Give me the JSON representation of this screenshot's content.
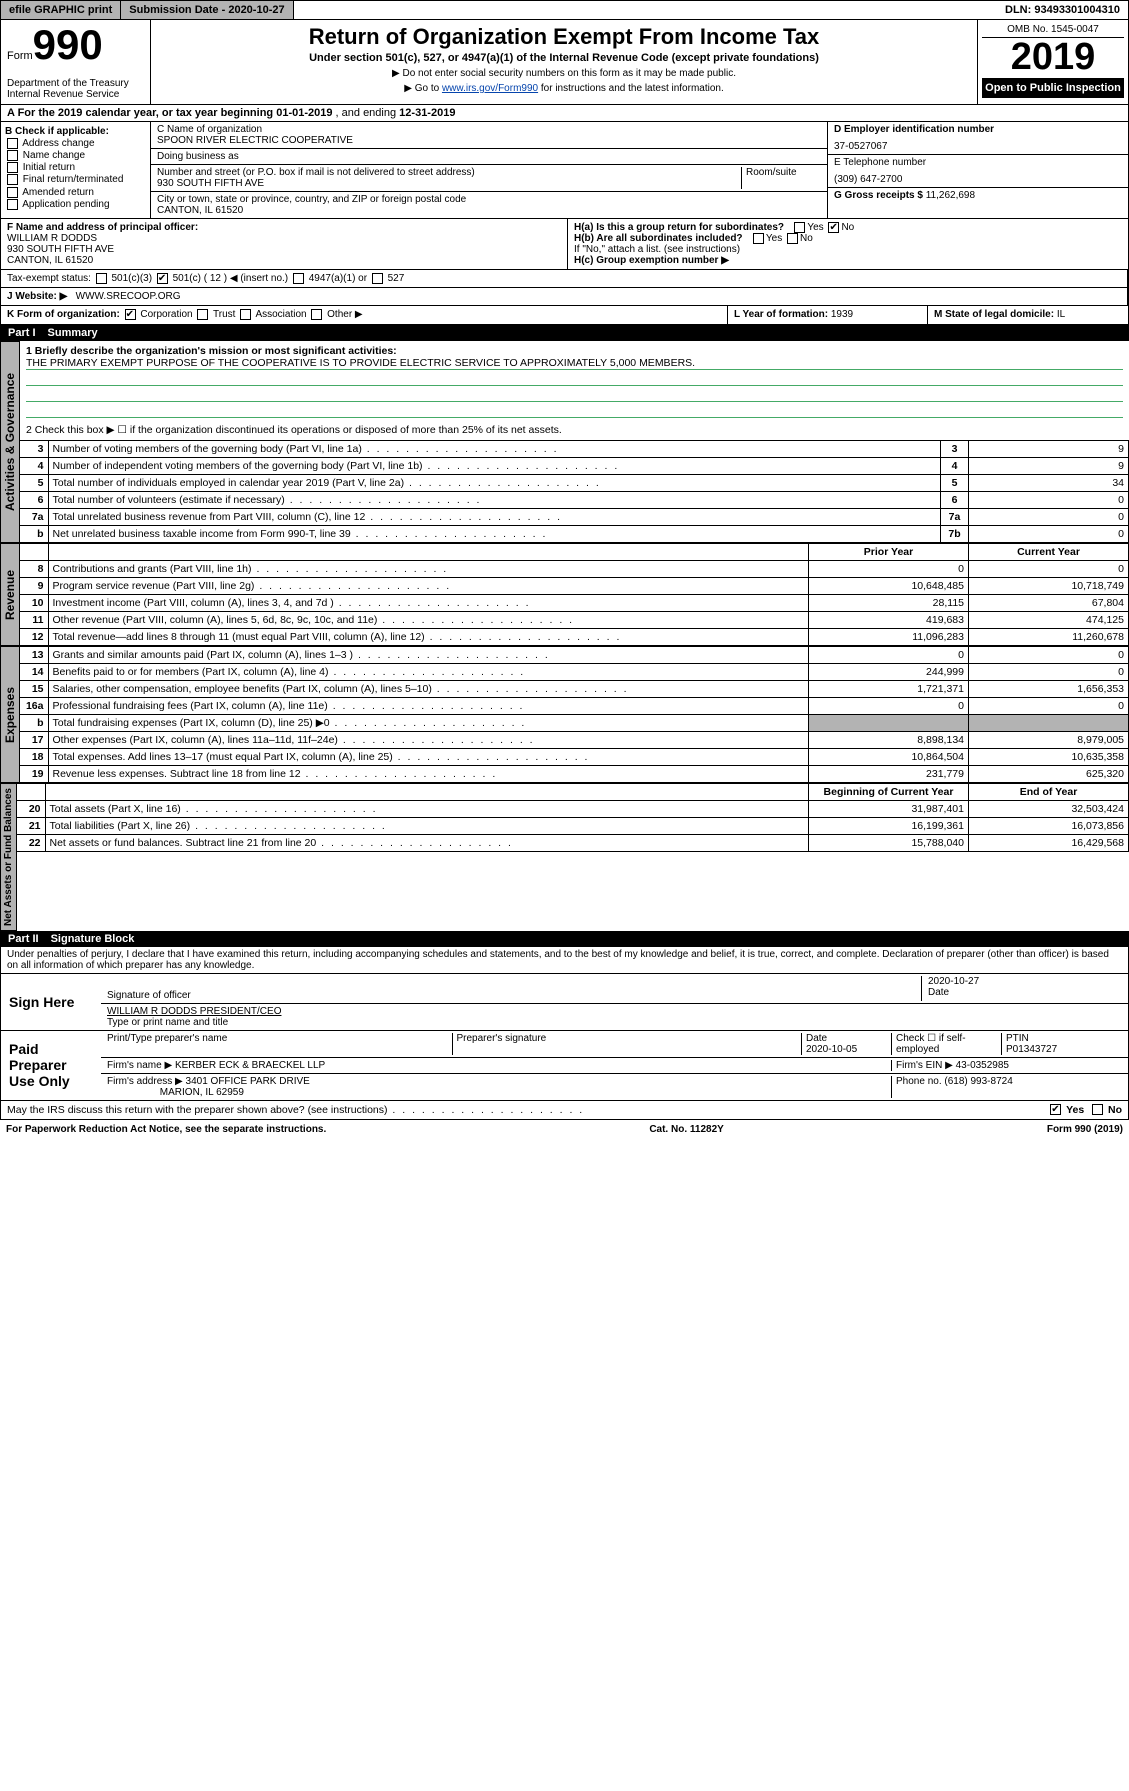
{
  "topbar": {
    "efile": "efile GRAPHIC print",
    "submission_label": "Submission Date - ",
    "submission_date": "2020-10-27",
    "dln_label": "DLN: ",
    "dln": "93493301004310"
  },
  "header": {
    "form_word": "Form",
    "form_num": "990",
    "dept": "Department of the Treasury\nInternal Revenue Service",
    "title": "Return of Organization Exempt From Income Tax",
    "subtitle": "Under section 501(c), 527, or 4947(a)(1) of the Internal Revenue Code (except private foundations)",
    "note1": "▶ Do not enter social security numbers on this form as it may be made public.",
    "note2_pre": "▶ Go to ",
    "note2_link": "www.irs.gov/Form990",
    "note2_post": " for instructions and the latest information.",
    "omb": "OMB No. 1545-0047",
    "year": "2019",
    "open": "Open to Public Inspection"
  },
  "lineA": {
    "text": "A For the 2019 calendar year, or tax year beginning ",
    "begin": "01-01-2019",
    "mid": "   , and ending ",
    "end": "12-31-2019"
  },
  "colB": {
    "hdr": "B Check if applicable:",
    "opts": [
      "Address change",
      "Name change",
      "Initial return",
      "Final return/terminated",
      "Amended return",
      "Application pending"
    ]
  },
  "colC": {
    "name_lbl": "C Name of organization",
    "name": "SPOON RIVER ELECTRIC COOPERATIVE",
    "dba_lbl": "Doing business as",
    "dba": "",
    "addr_lbl": "Number and street (or P.O. box if mail is not delivered to street address)",
    "room_lbl": "Room/suite",
    "addr": "930 SOUTH FIFTH AVE",
    "city_lbl": "City or town, state or province, country, and ZIP or foreign postal code",
    "city": "CANTON, IL  61520"
  },
  "colD": {
    "ein_lbl": "D Employer identification number",
    "ein": "37-0527067",
    "phone_lbl": "E Telephone number",
    "phone": "(309) 647-2700",
    "gross_lbl": "G Gross receipts $ ",
    "gross": "11,262,698"
  },
  "rowF": {
    "lbl": "F  Name and address of principal officer:",
    "name": "WILLIAM R DODDS",
    "addr1": "930 SOUTH FIFTH AVE",
    "addr2": "CANTON, IL  61520"
  },
  "rowH": {
    "a": "H(a)  Is this a group return for subordinates?",
    "b": "H(b)  Are all subordinates included?",
    "b_note": "If \"No,\" attach a list. (see instructions)",
    "c": "H(c)  Group exemption number ▶"
  },
  "taxExempt": {
    "lbl": "Tax-exempt status:",
    "c12": "501(c) ( 12 ) ◀ (insert no.)",
    "opts": [
      "501(c)(3)",
      "4947(a)(1) or",
      "527"
    ]
  },
  "rowJ": {
    "lbl": "J Website: ▶",
    "val": "WWW.SRECOOP.ORG"
  },
  "rowK": {
    "lbl": "K Form of organization:",
    "opts": [
      "Corporation",
      "Trust",
      "Association",
      "Other ▶"
    ],
    "L_lbl": "L Year of formation: ",
    "L_val": "1939",
    "M_lbl": "M State of legal domicile: ",
    "M_val": "IL"
  },
  "part1": {
    "num": "Part I",
    "title": "Summary"
  },
  "summary": {
    "q1_lbl": "1  Briefly describe the organization's mission or most significant activities:",
    "q1_val": "THE PRIMARY EXEMPT PURPOSE OF THE COOPERATIVE IS TO PROVIDE ELECTRIC SERVICE TO APPROXIMATELY 5,000 MEMBERS.",
    "q2": "2   Check this box ▶ ☐  if the organization discontinued its operations or disposed of more than 25% of its net assets.",
    "rows_governance": [
      {
        "n": "3",
        "d": "Number of voting members of the governing body (Part VI, line 1a)",
        "b": "3",
        "v": "9"
      },
      {
        "n": "4",
        "d": "Number of independent voting members of the governing body (Part VI, line 1b)",
        "b": "4",
        "v": "9"
      },
      {
        "n": "5",
        "d": "Total number of individuals employed in calendar year 2019 (Part V, line 2a)",
        "b": "5",
        "v": "34"
      },
      {
        "n": "6",
        "d": "Total number of volunteers (estimate if necessary)",
        "b": "6",
        "v": "0"
      },
      {
        "n": "7a",
        "d": "Total unrelated business revenue from Part VIII, column (C), line 12",
        "b": "7a",
        "v": "0"
      },
      {
        "n": "b",
        "d": "Net unrelated business taxable income from Form 990-T, line 39",
        "b": "7b",
        "v": "0"
      }
    ],
    "col_hdr_prior": "Prior Year",
    "col_hdr_current": "Current Year",
    "rows_revenue": [
      {
        "n": "8",
        "d": "Contributions and grants (Part VIII, line 1h)",
        "p": "0",
        "c": "0"
      },
      {
        "n": "9",
        "d": "Program service revenue (Part VIII, line 2g)",
        "p": "10,648,485",
        "c": "10,718,749"
      },
      {
        "n": "10",
        "d": "Investment income (Part VIII, column (A), lines 3, 4, and 7d )",
        "p": "28,115",
        "c": "67,804"
      },
      {
        "n": "11",
        "d": "Other revenue (Part VIII, column (A), lines 5, 6d, 8c, 9c, 10c, and 11e)",
        "p": "419,683",
        "c": "474,125"
      },
      {
        "n": "12",
        "d": "Total revenue—add lines 8 through 11 (must equal Part VIII, column (A), line 12)",
        "p": "11,096,283",
        "c": "11,260,678"
      }
    ],
    "rows_expenses": [
      {
        "n": "13",
        "d": "Grants and similar amounts paid (Part IX, column (A), lines 1–3 )",
        "p": "0",
        "c": "0"
      },
      {
        "n": "14",
        "d": "Benefits paid to or for members (Part IX, column (A), line 4)",
        "p": "244,999",
        "c": "0"
      },
      {
        "n": "15",
        "d": "Salaries, other compensation, employee benefits (Part IX, column (A), lines 5–10)",
        "p": "1,721,371",
        "c": "1,656,353"
      },
      {
        "n": "16a",
        "d": "Professional fundraising fees (Part IX, column (A), line 11e)",
        "p": "0",
        "c": "0"
      },
      {
        "n": "b",
        "d": "Total fundraising expenses (Part IX, column (D), line 25) ▶0",
        "p": "",
        "c": "",
        "shade": true
      },
      {
        "n": "17",
        "d": "Other expenses (Part IX, column (A), lines 11a–11d, 11f–24e)",
        "p": "8,898,134",
        "c": "8,979,005"
      },
      {
        "n": "18",
        "d": "Total expenses. Add lines 13–17 (must equal Part IX, column (A), line 25)",
        "p": "10,864,504",
        "c": "10,635,358"
      },
      {
        "n": "19",
        "d": "Revenue less expenses. Subtract line 18 from line 12",
        "p": "231,779",
        "c": "625,320"
      }
    ],
    "col_hdr_begin": "Beginning of Current Year",
    "col_hdr_end": "End of Year",
    "rows_netassets": [
      {
        "n": "20",
        "d": "Total assets (Part X, line 16)",
        "p": "31,987,401",
        "c": "32,503,424"
      },
      {
        "n": "21",
        "d": "Total liabilities (Part X, line 26)",
        "p": "16,199,361",
        "c": "16,073,856"
      },
      {
        "n": "22",
        "d": "Net assets or fund balances. Subtract line 21 from line 20",
        "p": "15,788,040",
        "c": "16,429,568"
      }
    ]
  },
  "sidelabels": {
    "gov": "Activities & Governance",
    "rev": "Revenue",
    "exp": "Expenses",
    "net": "Net Assets or Fund Balances"
  },
  "part2": {
    "num": "Part II",
    "title": "Signature Block"
  },
  "perjury": "Under penalties of perjury, I declare that I have examined this return, including accompanying schedules and statements, and to the best of my knowledge and belief, it is true, correct, and complete. Declaration of preparer (other than officer) is based on all information of which preparer has any knowledge.",
  "sign": {
    "here": "Sign Here",
    "sig_officer": "Signature of officer",
    "date": "2020-10-27",
    "date_lbl": "Date",
    "name": "WILLIAM R DODDS  PRESIDENT/CEO",
    "name_lbl": "Type or print name and title"
  },
  "paid": {
    "lbl": "Paid Preparer Use Only",
    "col_print": "Print/Type preparer's name",
    "col_sig": "Preparer's signature",
    "col_date": "Date",
    "date": "2020-10-05",
    "check_lbl": "Check ☐ if self-employed",
    "ptin_lbl": "PTIN",
    "ptin": "P01343727",
    "firm_name_lbl": "Firm's name    ▶",
    "firm_name": "KERBER ECK & BRAECKEL LLP",
    "firm_ein_lbl": "Firm's EIN ▶",
    "firm_ein": "43-0352985",
    "firm_addr_lbl": "Firm's address ▶",
    "firm_addr1": "3401 OFFICE PARK DRIVE",
    "firm_addr2": "MARION, IL  62959",
    "phone_lbl": "Phone no. ",
    "phone": "(618) 993-8724"
  },
  "discuss": {
    "q": "May the IRS discuss this return with the preparer shown above? (see instructions)",
    "yes": "Yes",
    "no": "No"
  },
  "footer": {
    "left": "For Paperwork Reduction Act Notice, see the separate instructions.",
    "mid": "Cat. No. 11282Y",
    "right": "Form 990 (2019)"
  }
}
